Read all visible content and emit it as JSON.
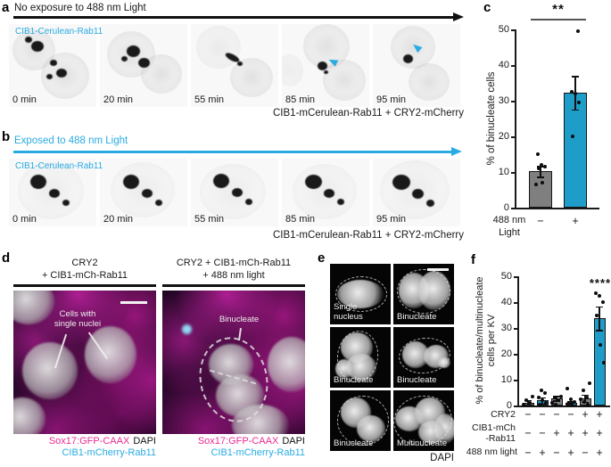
{
  "colors": {
    "cyan_bar": "#1e9dc8",
    "cyan_text": "#29abe2",
    "gray_bar": "#7f7f7f",
    "magenta": "#ec2a94",
    "black": "#1a1a1a"
  },
  "panel_a": {
    "label": "a",
    "header": "No exposure to 488 nm Light",
    "channel": "CIB1-Cerulean-Rab11",
    "times": [
      "0 min",
      "20 min",
      "55 min",
      "85 min",
      "95 min"
    ],
    "caption": "CIB1-mCerulean-Rab11 + CRY2-mCherry"
  },
  "panel_b": {
    "label": "b",
    "header": "Exposed to 488 nm Light",
    "channel": "CIB1-Cerulean-Rab11",
    "times": [
      "0 min",
      "20 min",
      "55 min",
      "85 min",
      "95 min"
    ],
    "caption": "CIB1-mCerulean-Rab11 + CRY2-mCherry"
  },
  "panel_c": {
    "label": "c"
  },
  "panel_d": {
    "label": "d",
    "left_title1": "CRY2",
    "left_title2": "+ CIB1-mCh-Rab11",
    "right_title1": "CRY2 + CIB1-mCh-Rab11",
    "right_title2": "+ 488 nm light",
    "left_annotation1": "Cells with",
    "left_annotation2": "single nuclei",
    "right_annotation": "Binucleate",
    "cap_magenta": "Sox17:GFP-CAAX",
    "cap_black": "DAPI",
    "cap_cyan": "CIB1-mCherry-Rab11"
  },
  "panel_e": {
    "label": "e",
    "tiles": [
      "Single nucleus",
      "Binucleate",
      "Binucleate",
      "Binucleate",
      "Binucleate",
      "Multinucleate"
    ],
    "caption": "DAPI"
  },
  "panel_f": {
    "label": "f"
  },
  "chart_data": [
    {
      "panel": "c",
      "type": "bar",
      "categories": [
        "no 488 nm light",
        "488 nm light"
      ],
      "values": [
        10.2,
        32.3
      ],
      "errors": [
        1.5,
        4.7
      ],
      "points": [
        [
          6.5,
          7,
          11,
          11.5,
          12,
          15
        ],
        [
          20,
          29.5,
          32,
          32.5,
          49.5
        ]
      ],
      "bar_colors": [
        "#7f7f7f",
        "#1e9dc8"
      ],
      "ylabel": "% of binucleate cells",
      "ylim": [
        0,
        50
      ],
      "yticks": [
        0,
        10,
        20,
        30,
        40,
        50
      ],
      "significance": "**",
      "x_group_label1": "488 nm",
      "x_group_label2": "Light",
      "x_tick_signs": [
        "−",
        "+"
      ]
    },
    {
      "panel": "f",
      "type": "bar",
      "categories": [
        "CRY2− CIB1− light−",
        "CRY2− CIB1− light+",
        "CRY2− CIB1+ light−",
        "CRY2− CIB1+ light+",
        "CRY2+ CIB1+ light−",
        "CRY2+ CIB1+ light+"
      ],
      "values": [
        1.2,
        2.0,
        2.8,
        1.0,
        2.8,
        33.8
      ],
      "errors": [
        0.9,
        1.2,
        0.9,
        0.7,
        1.4,
        4.5
      ],
      "points": [
        [
          0.5,
          1,
          2,
          3.5
        ],
        [
          0.5,
          1,
          2,
          3,
          5,
          6
        ],
        [
          0.5,
          1,
          2,
          3,
          3.5
        ],
        [
          0.3,
          0.7,
          1.5,
          2.5,
          6.5
        ],
        [
          0.5,
          1.5,
          2.5,
          3,
          6,
          8.5
        ],
        [
          16.5,
          23.5,
          35,
          40,
          42.5,
          43.5
        ]
      ],
      "bar_colors": [
        "#7f7f7f",
        "#1e9dc8",
        "#7f7f7f",
        "#1e9dc8",
        "#7f7f7f",
        "#1e9dc8"
      ],
      "ylabel_line1": "% of binucleate/multinucleate",
      "ylabel_line2": "cells per KV",
      "ylim": [
        0,
        50
      ],
      "yticks": [
        0,
        10,
        20,
        30,
        40,
        50
      ],
      "significance": "****",
      "conditions": [
        {
          "label": "CRY2",
          "signs": [
            "−",
            "−",
            "−",
            "−",
            "+",
            "+"
          ]
        },
        {
          "label": "CIB1-mCh",
          "label2": "-Rab11",
          "signs": [
            "−",
            "−",
            "+",
            "+",
            "+",
            "+"
          ]
        },
        {
          "label": "488 nm light",
          "signs": [
            "−",
            "+",
            "−",
            "+",
            "−",
            "+"
          ]
        }
      ]
    }
  ]
}
